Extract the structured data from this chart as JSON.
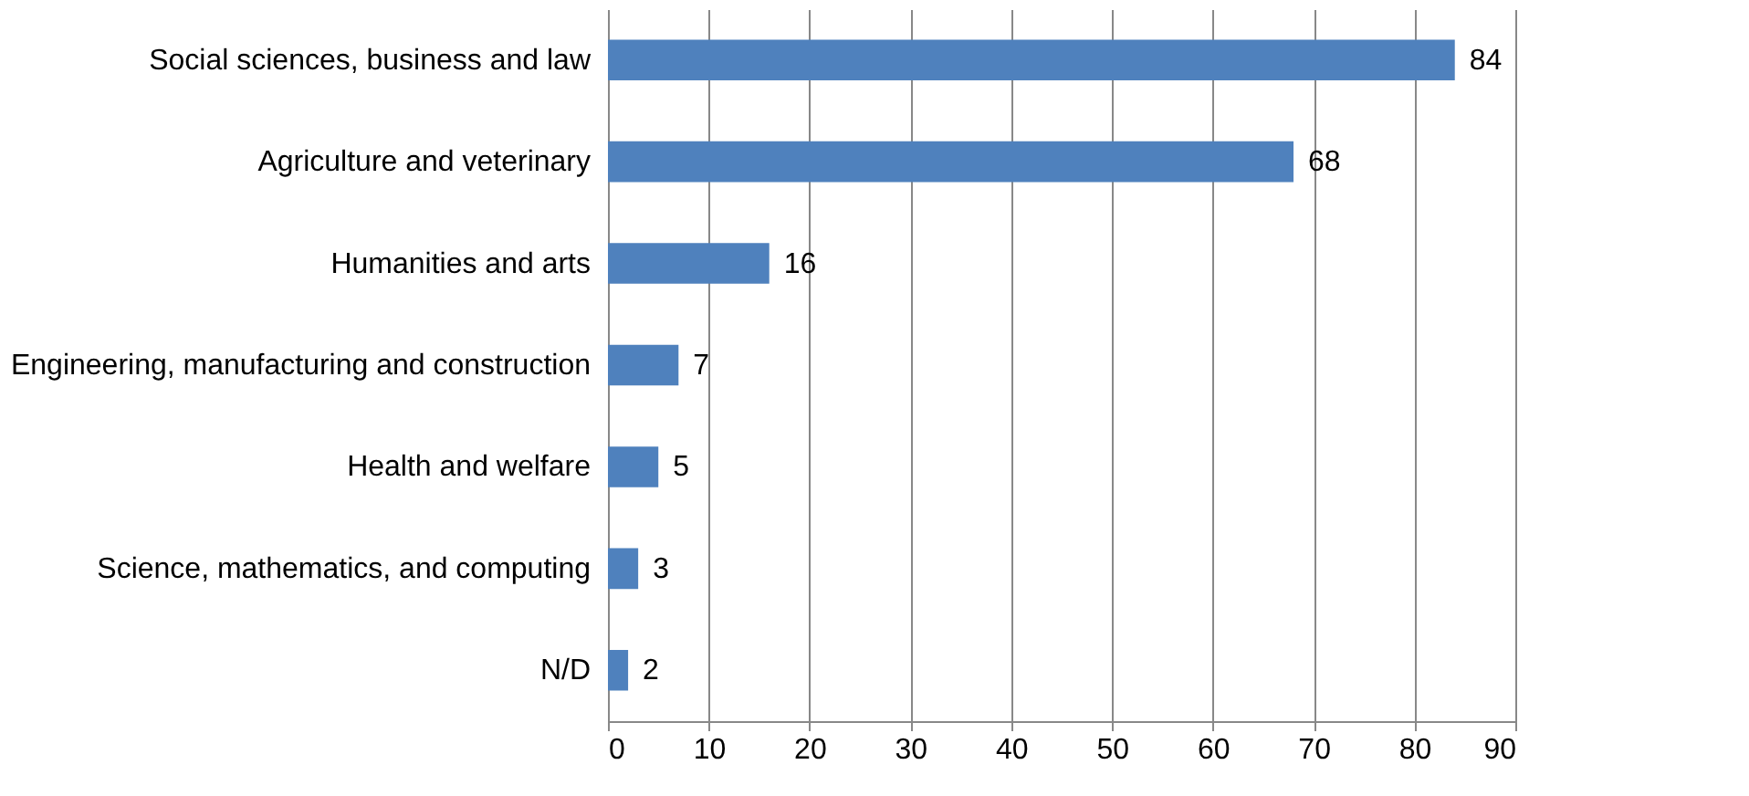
{
  "chart_data": {
    "type": "bar",
    "orientation": "horizontal",
    "categories": [
      "Social sciences, business and law",
      "Agriculture and veterinary",
      "Humanities and arts",
      "Engineering, manufacturing and construction",
      "Health and welfare",
      "Science, mathematics, and computing",
      "N/D"
    ],
    "values": [
      84,
      68,
      16,
      7,
      5,
      3,
      2
    ],
    "color": "#4f81bd",
    "xlim": [
      0,
      90
    ],
    "xticks": [
      0,
      10,
      20,
      30,
      40,
      50,
      60,
      70,
      80,
      90
    ],
    "grid": "x",
    "data_labels": true
  }
}
